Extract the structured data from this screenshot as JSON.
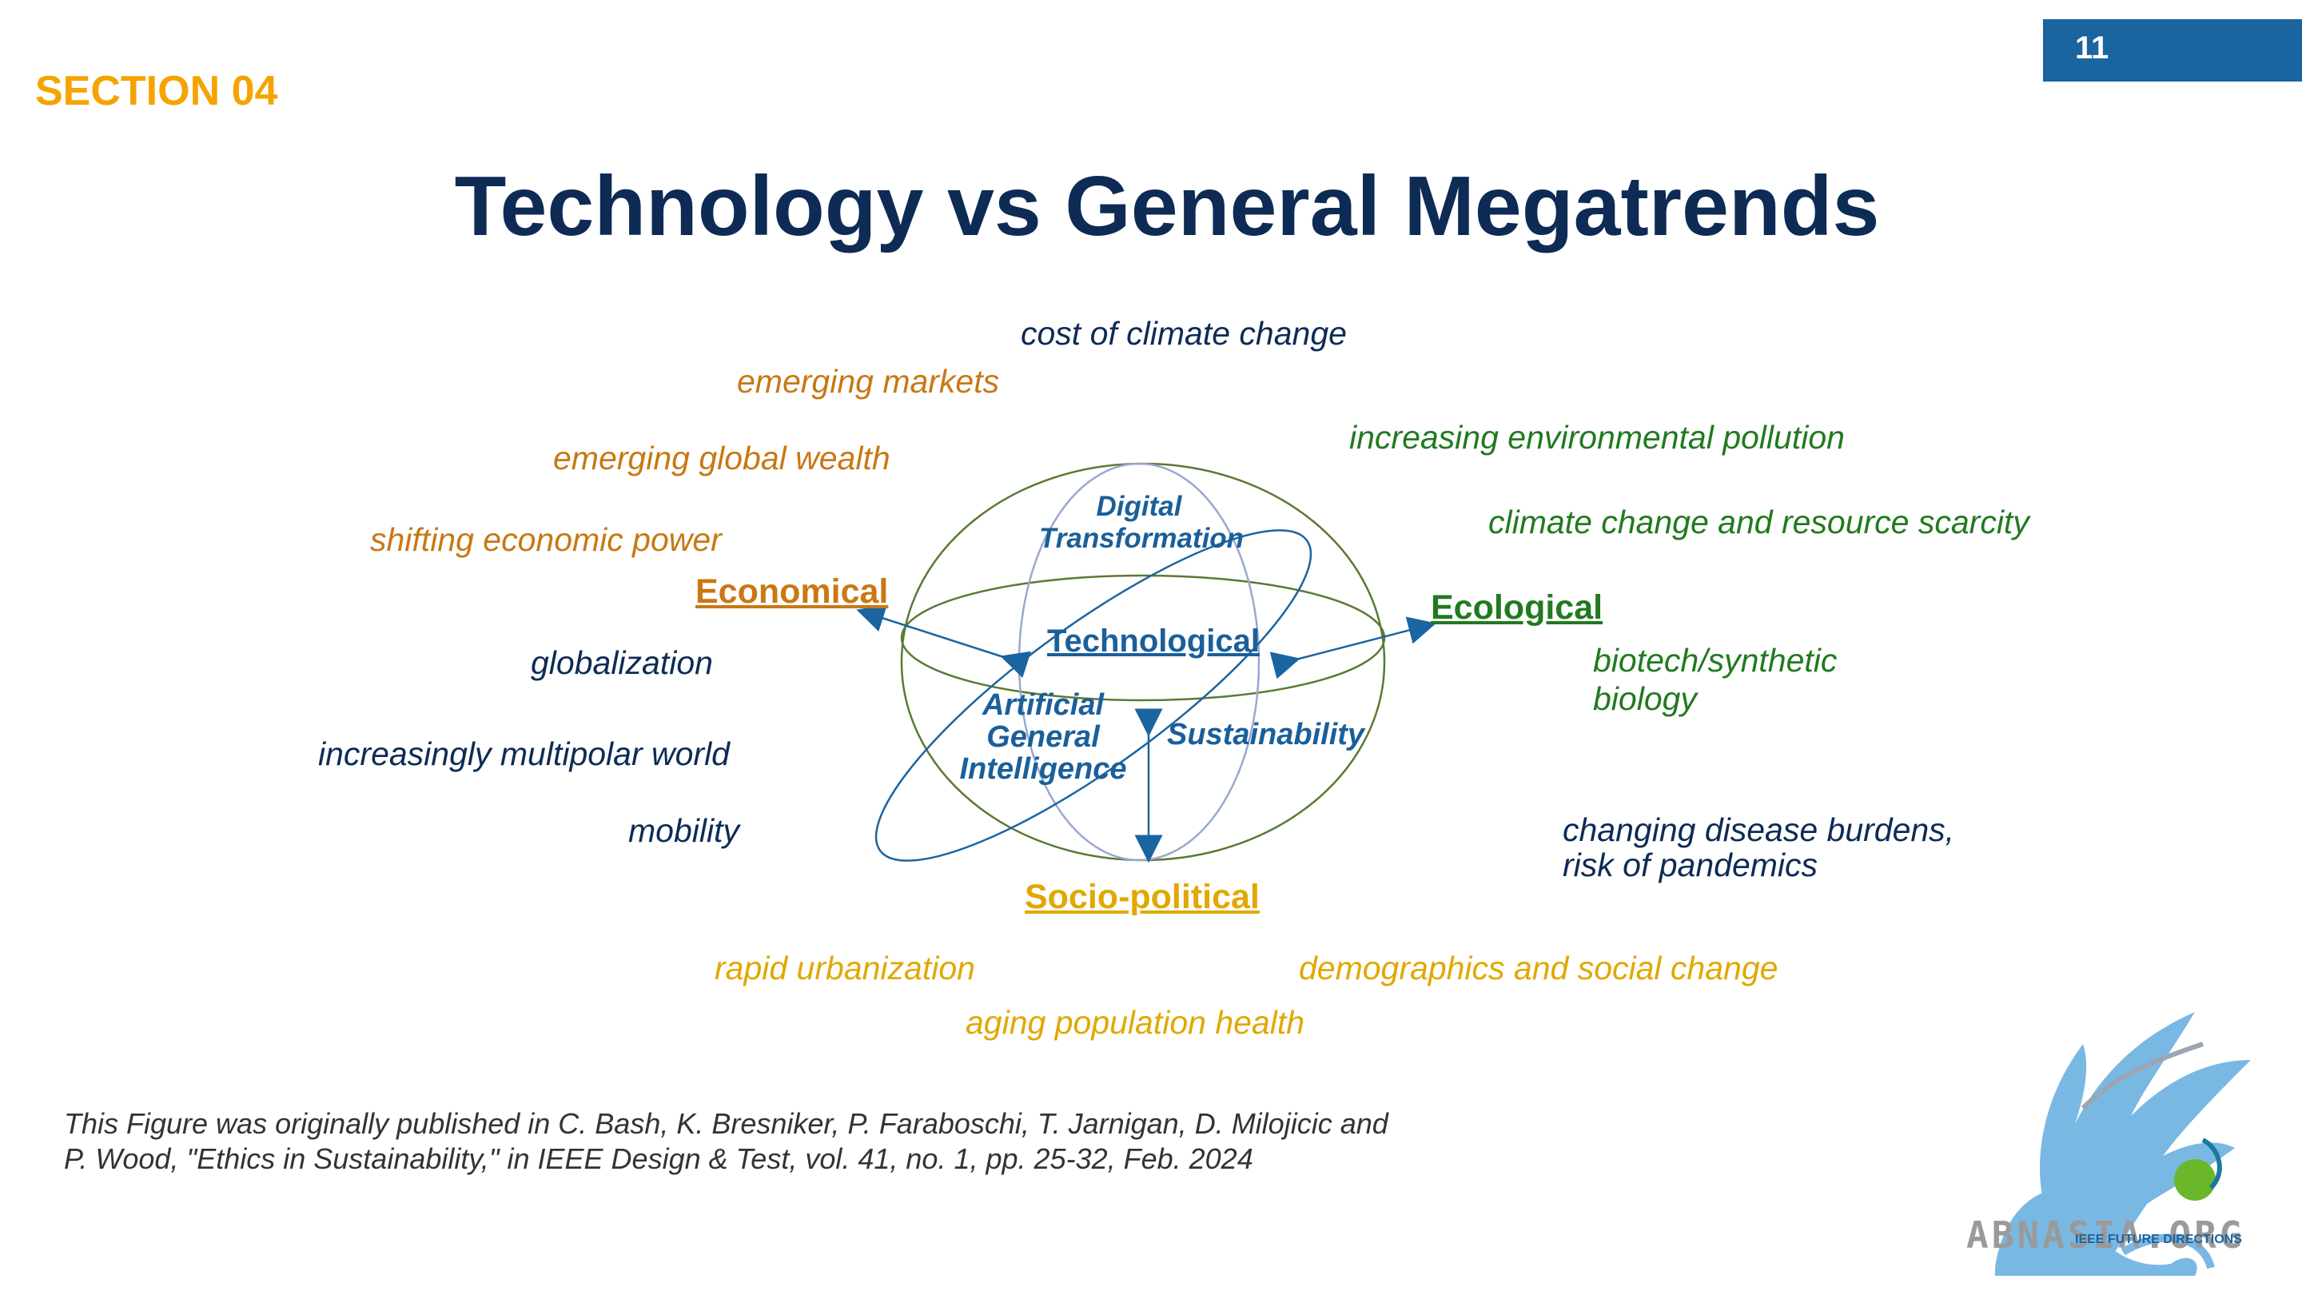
{
  "header": {
    "page_number": "11",
    "section": "SECTION 04",
    "title": "Technology vs General Megatrends"
  },
  "categories": {
    "economical": "Economical",
    "ecological": "Ecological",
    "socio_political": "Socio-political",
    "technological": "Technological"
  },
  "inner_labels": {
    "digital_line1": "Digital",
    "digital_line2": "Transformation",
    "agi_line1": "Artificial",
    "agi_line2": "General",
    "agi_line3": "Intelligence",
    "sustainability": "Sustainability"
  },
  "trends": {
    "cost_of_climate_change": "cost of climate change",
    "emerging_markets": "emerging markets",
    "emerging_global_wealth": "emerging global wealth",
    "shifting_economic_power": "shifting economic power",
    "globalization": "globalization",
    "multipolar_world": "increasingly multipolar world",
    "mobility": "mobility",
    "environmental_pollution": "increasing environmental pollution",
    "climate_resource": "climate change and resource scarcity",
    "biotech_line1": "biotech/synthetic",
    "biotech_line2": "biology",
    "disease_line1": "changing disease burdens,",
    "disease_line2": "risk of pandemics",
    "rapid_urbanization": "rapid urbanization",
    "demographics": "demographics and social change",
    "aging_population": "aging population health"
  },
  "caption": {
    "line1": "This Figure was originally published in C. Bash, K. Bresniker, P. Faraboschi, T. Jarnigan, D. Milojicic and",
    "line2": "P. Wood, \"Ethics in Sustainability,\" in IEEE Design & Test, vol. 41, no. 1, pp. 25-32, Feb. 2024"
  },
  "logo": {
    "text": "ABNASIA.ORG",
    "sub_text": "IEEE FUTURE DIRECTIONS"
  },
  "colors": {
    "navy": "#0d2b55",
    "orange": "#c87814",
    "green": "#217a1f",
    "yellow": "#e0a800",
    "blue": "#1a5f9a",
    "accent_bar": "#1a64a0",
    "section": "#f5a300"
  }
}
